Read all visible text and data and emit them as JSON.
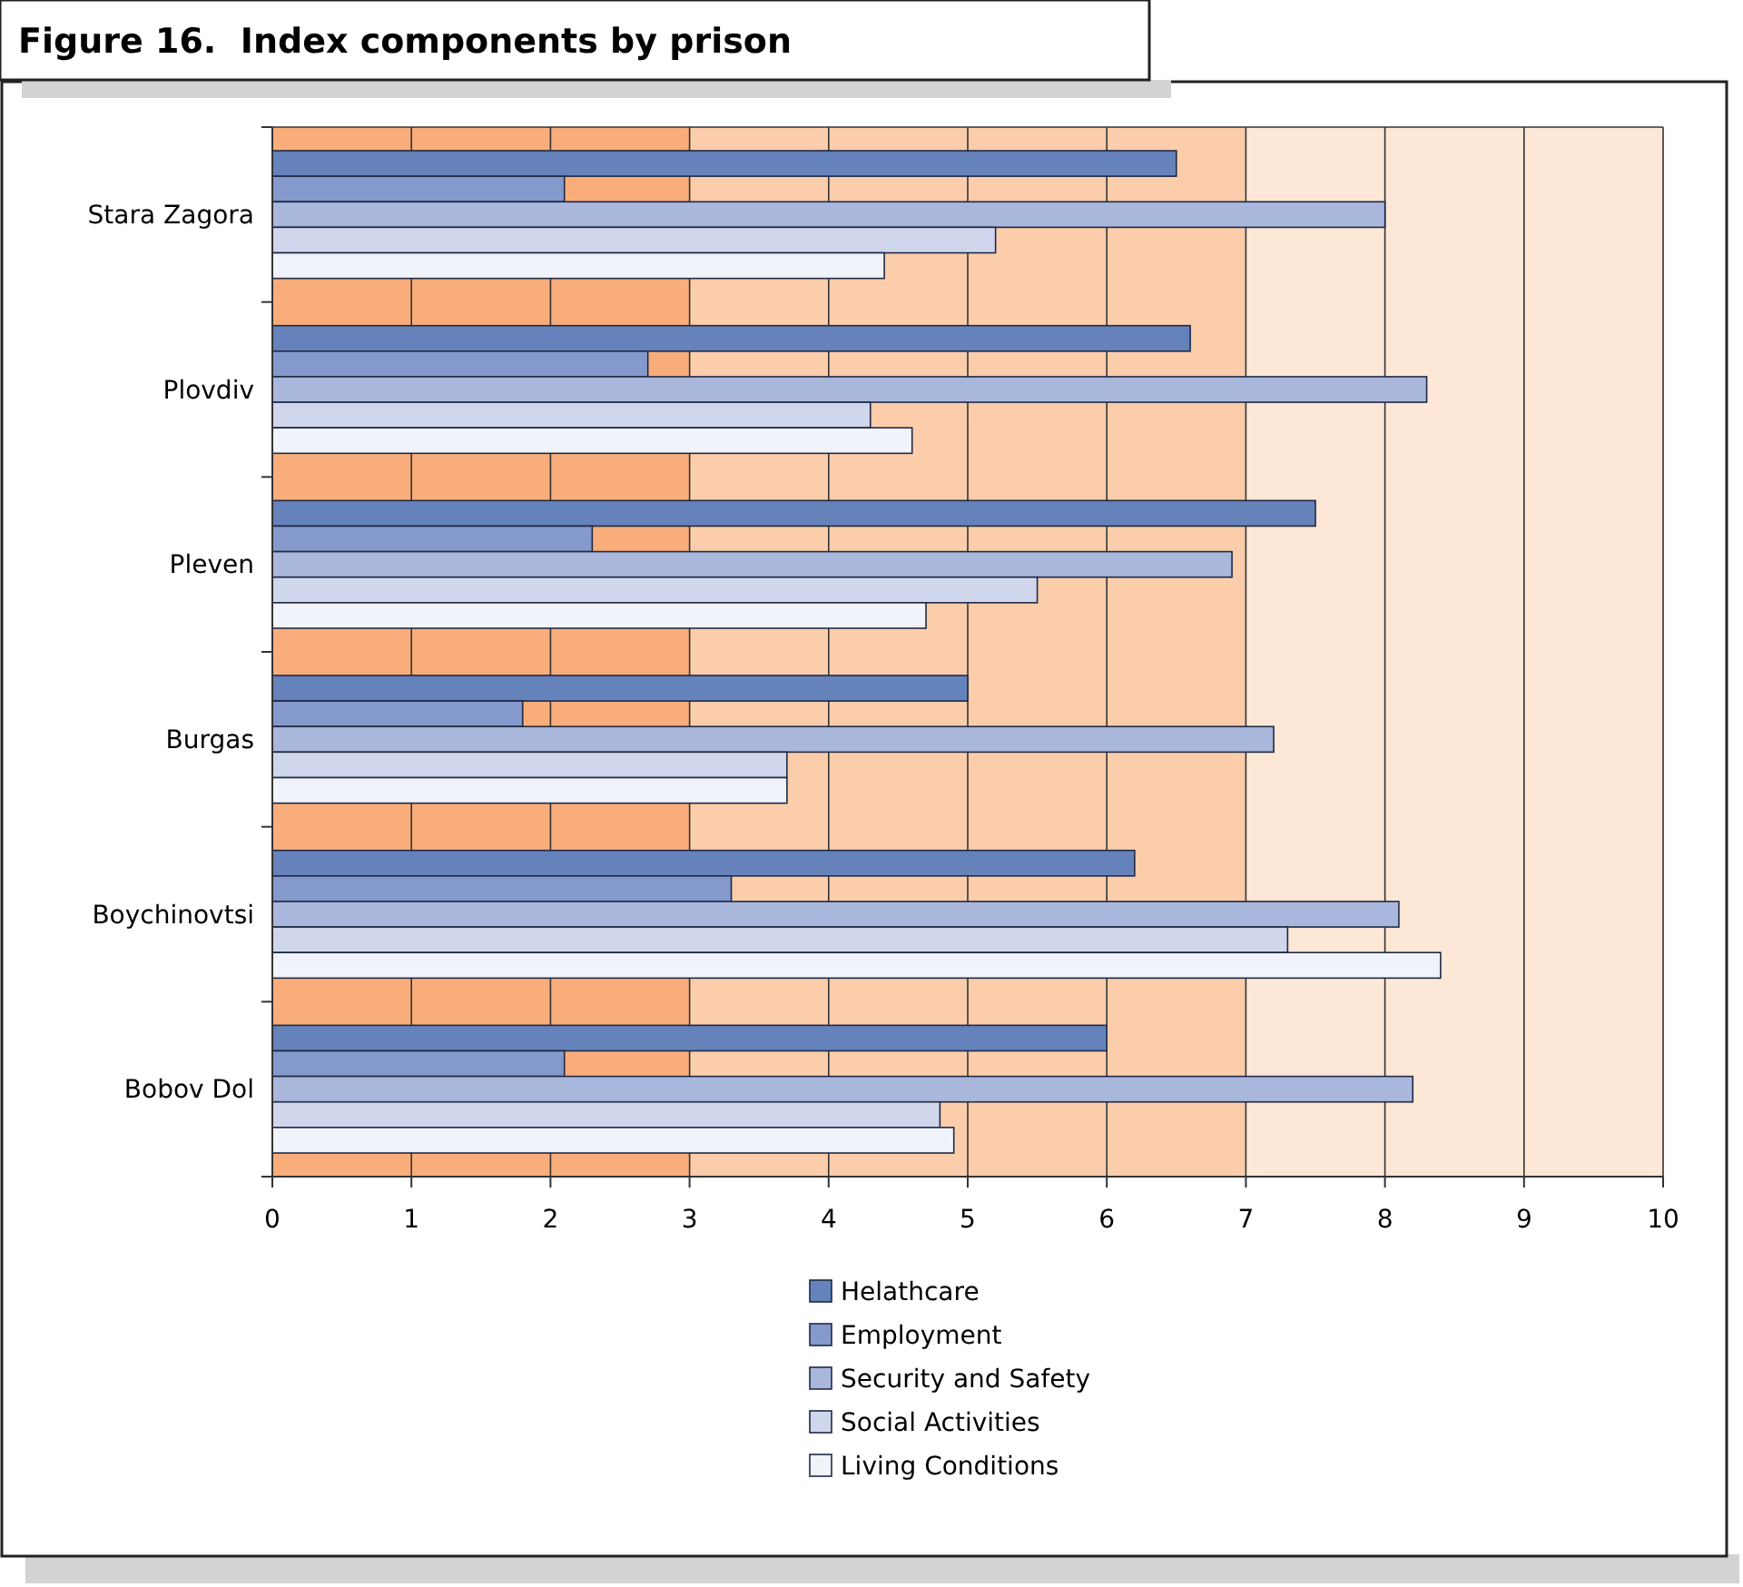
{
  "chart_data": {
    "type": "bar",
    "orientation": "horizontal",
    "title": "Figure 16.  Index components by prison",
    "categories": [
      "Stara Zagora",
      "Plovdiv",
      "Pleven",
      "Burgas",
      "Boychinovtsi",
      "Bobov Dol"
    ],
    "series": [
      {
        "name": "Helathcare",
        "color": "#6682bb",
        "values": [
          6.5,
          6.6,
          7.5,
          5.0,
          6.2,
          6.0
        ]
      },
      {
        "name": "Employment",
        "color": "#8499cc",
        "values": [
          2.1,
          2.7,
          2.3,
          1.8,
          3.3,
          2.1
        ]
      },
      {
        "name": "Security and Safety",
        "color": "#aab7dc",
        "values": [
          8.0,
          8.3,
          6.9,
          7.2,
          8.1,
          8.2
        ]
      },
      {
        "name": "Social Activities",
        "color": "#d0d7ec",
        "values": [
          5.2,
          4.3,
          5.5,
          3.7,
          7.3,
          4.8
        ]
      },
      {
        "name": "Living Conditions",
        "color": "#f1f3fa",
        "values": [
          4.4,
          4.6,
          4.7,
          3.7,
          8.4,
          4.9
        ]
      }
    ],
    "xlim": [
      0,
      10
    ],
    "xticks": [
      0,
      1,
      2,
      3,
      4,
      5,
      6,
      7,
      8,
      9,
      10
    ],
    "bands": [
      {
        "axis": "x",
        "from": 0,
        "to": 3,
        "color": "#f9ad7b"
      },
      {
        "axis": "x",
        "from": 3,
        "to": 7,
        "color": "#fbcdab"
      },
      {
        "axis": "x",
        "from": 7,
        "to": 10,
        "color": "#fde7d6"
      }
    ],
    "grid": "x",
    "legend": "bottom"
  }
}
